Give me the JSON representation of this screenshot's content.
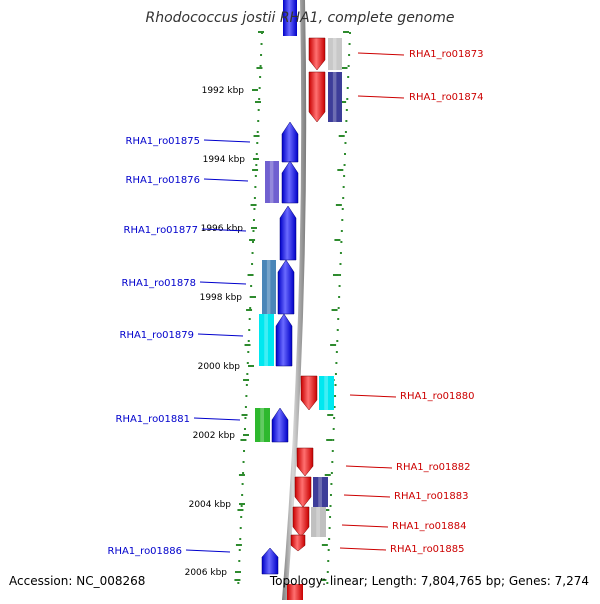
{
  "title": "Rhodococcus jostii RHA1, complete genome",
  "footer": {
    "accession": "Accession: NC_008268",
    "summary": "Topology: linear; Length: 7,804,765 bp; Genes: 7,274"
  },
  "colors": {
    "backbone": "#9a9a9a",
    "tick": "#2e8b2e",
    "forward_label": "#0000cc",
    "reverse_label": "#cc0000",
    "ruler_label": "#000000"
  },
  "ruler": [
    {
      "label": "1992 kbp"
    },
    {
      "label": "1994 kbp"
    },
    {
      "label": "1996 kbp"
    },
    {
      "label": "1998 kbp"
    },
    {
      "label": "2000 kbp"
    },
    {
      "label": "2002 kbp"
    },
    {
      "label": "2004 kbp"
    },
    {
      "label": "2006 kbp"
    }
  ],
  "genes": [
    {
      "label": "RHA1_ro01873",
      "strand": "reverse",
      "color": "#ee1111",
      "cog_color": "#c8c8c8"
    },
    {
      "label": "RHA1_ro01874",
      "strand": "reverse",
      "color": "#ee1111",
      "cog_color": "#3d3d99"
    },
    {
      "label": "RHA1_ro01875",
      "strand": "forward",
      "color": "#1111ee",
      "cog_color": ""
    },
    {
      "label": "RHA1_ro01876",
      "strand": "forward",
      "color": "#1111ee",
      "cog_color": "#7060d0"
    },
    {
      "label": "RHA1_ro01877",
      "strand": "forward",
      "color": "#1111ee",
      "cog_color": ""
    },
    {
      "label": "RHA1_ro01878",
      "strand": "forward",
      "color": "#1111ee",
      "cog_color": "#4a86b8"
    },
    {
      "label": "RHA1_ro01879",
      "strand": "forward",
      "color": "#1111ee",
      "cog_color": "#00e8f0"
    },
    {
      "label": "RHA1_ro01880",
      "strand": "reverse",
      "color": "#ee1111",
      "cog_color": "#00e8f0"
    },
    {
      "label": "RHA1_ro01881",
      "strand": "forward",
      "color": "#1111ee",
      "cog_color": "#2eb82e"
    },
    {
      "label": "RHA1_ro01882",
      "strand": "reverse",
      "color": "#ee1111",
      "cog_color": ""
    },
    {
      "label": "RHA1_ro01883",
      "strand": "reverse",
      "color": "#ee1111",
      "cog_color": "#3d3d99"
    },
    {
      "label": "RHA1_ro01884",
      "strand": "reverse",
      "color": "#ee1111",
      "cog_color": "#c0c0c0"
    },
    {
      "label": "RHA1_ro01885",
      "strand": "reverse",
      "color": "#ee1111",
      "cog_color": ""
    },
    {
      "label": "RHA1_ro01886",
      "strand": "forward",
      "color": "#1111ee",
      "cog_color": ""
    }
  ]
}
